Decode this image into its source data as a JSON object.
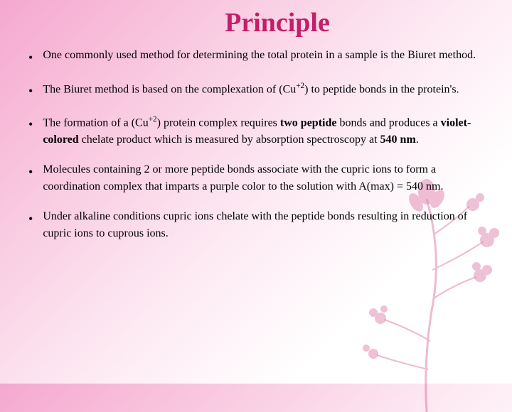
{
  "slide": {
    "title": "Principle",
    "title_color": "#c41e6a",
    "title_fontsize": 38,
    "body_fontsize": 16,
    "bullets": [
      {
        "html": "One commonly used method for determining the total protein in a sample is the Biuret method."
      },
      {
        "html": "The Biuret method is based on the complexation of (Cu<sup>+2</sup>) to peptide bonds in the protein's."
      },
      {
        "html": "The formation of a (Cu<sup>+2</sup>) protein complex requires <b>two peptide</b> bonds and produces a <b>violet-colored</b> chelate product which is measured by absorption spectroscopy at <b>540 nm</b>."
      },
      {
        "html": "Molecules containing 2 or more peptide bonds associate with the cupric ions to form a coordination complex that imparts a purple color to the solution with A(max) = 540 nm."
      },
      {
        "html": "Under alkaline conditions cupric ions chelate with the peptide bonds resulting in reduction of cupric ions to cuprous ions."
      }
    ]
  },
  "background": {
    "gradient_start": "#f5a8d0",
    "gradient_mid": "#fde8f2",
    "gradient_end": "#ffffff",
    "floral_color": "#c41e6a",
    "floral_highlight": "#ffffff"
  }
}
